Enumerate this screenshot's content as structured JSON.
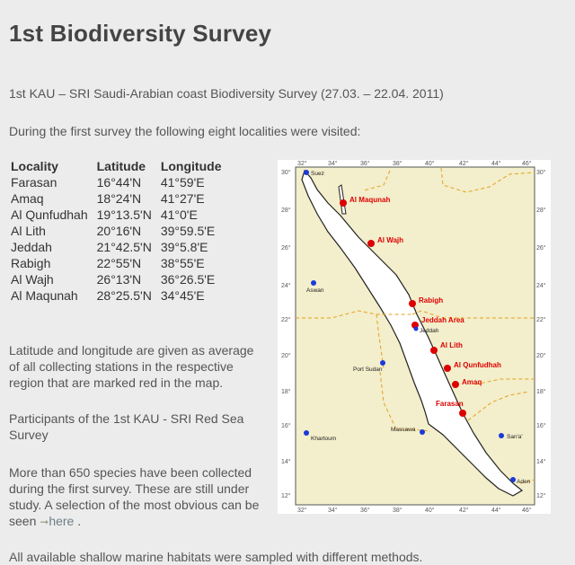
{
  "title": "1st Biodiversity Survey",
  "subtitle": "1st KAU – SRI Saudi-Arabian coast Biodiversity Survey (27.03. – 22.04. 2011)",
  "intro": "During the first survey the following eight localities were visited:",
  "localities": {
    "headers": [
      "Locality",
      "Latitude",
      "Longitude"
    ],
    "rows": [
      [
        "Farasan",
        "16°44'N",
        "41°59'E"
      ],
      [
        "Amaq",
        "18°24'N",
        "41°27'E"
      ],
      [
        "Al Qunfudhah",
        "19°13.5'N",
        "41°0'E"
      ],
      [
        "Al Lith",
        "20°16'N",
        "39°59.5'E"
      ],
      [
        "Jeddah",
        "21°42.5'N",
        "39°5.8'E"
      ],
      [
        "Rabigh",
        "22°55'N",
        "38°55'E"
      ],
      [
        "Al Wajh",
        "26°13'N",
        "36°26.5'E"
      ],
      [
        "Al Maqunah",
        "28°25.5'N",
        "34°45'E"
      ]
    ]
  },
  "avg_note": "Latitude and longitude are given as average of all collecting stations in the respective region that are marked red in the map.",
  "participants": "Participants  of the 1st KAU - SRI Red Sea Survey",
  "species": {
    "text": "More than 650 species have been collected during the first survey. These are still under study. A selection of the most obvious can be seen",
    "arrow": "➞",
    "link": "here",
    "after": "."
  },
  "habitats": "All available shallow marine habitats  were sampled with different methods.",
  "map": {
    "top_ticks": [
      "32°",
      "34°",
      "36°",
      "38°",
      "40°",
      "42°",
      "44°",
      "46°"
    ],
    "bottom_ticks": [
      "32°",
      "34°",
      "36°",
      "38°",
      "40°",
      "42°",
      "44°",
      "46°"
    ],
    "left_ticks": [
      "30°",
      "28°",
      "26°",
      "24°",
      "22°",
      "20°",
      "18°",
      "16°",
      "14°",
      "12°"
    ],
    "right_ticks": [
      "30°",
      "28°",
      "26°",
      "24°",
      "22°",
      "20°",
      "18°",
      "16°",
      "14°",
      "12°"
    ],
    "sites": [
      "Al Maqunah",
      "Al Wajh",
      "Rabigh",
      "Jeddah Area",
      "Al Lith",
      "Al Qunfudhah",
      "Amaq",
      "Farasan"
    ],
    "cities": [
      "Suez",
      "Aswan",
      "Jeddah",
      "Port Sudan",
      "Massawa",
      "Khartoum",
      "San'a'",
      "Aden"
    ],
    "colors": {
      "land": "#f3eecb",
      "sea": "#ffffff",
      "site": "#dd0000",
      "city": "#1a3ad8",
      "border": "#e3a21e"
    }
  }
}
